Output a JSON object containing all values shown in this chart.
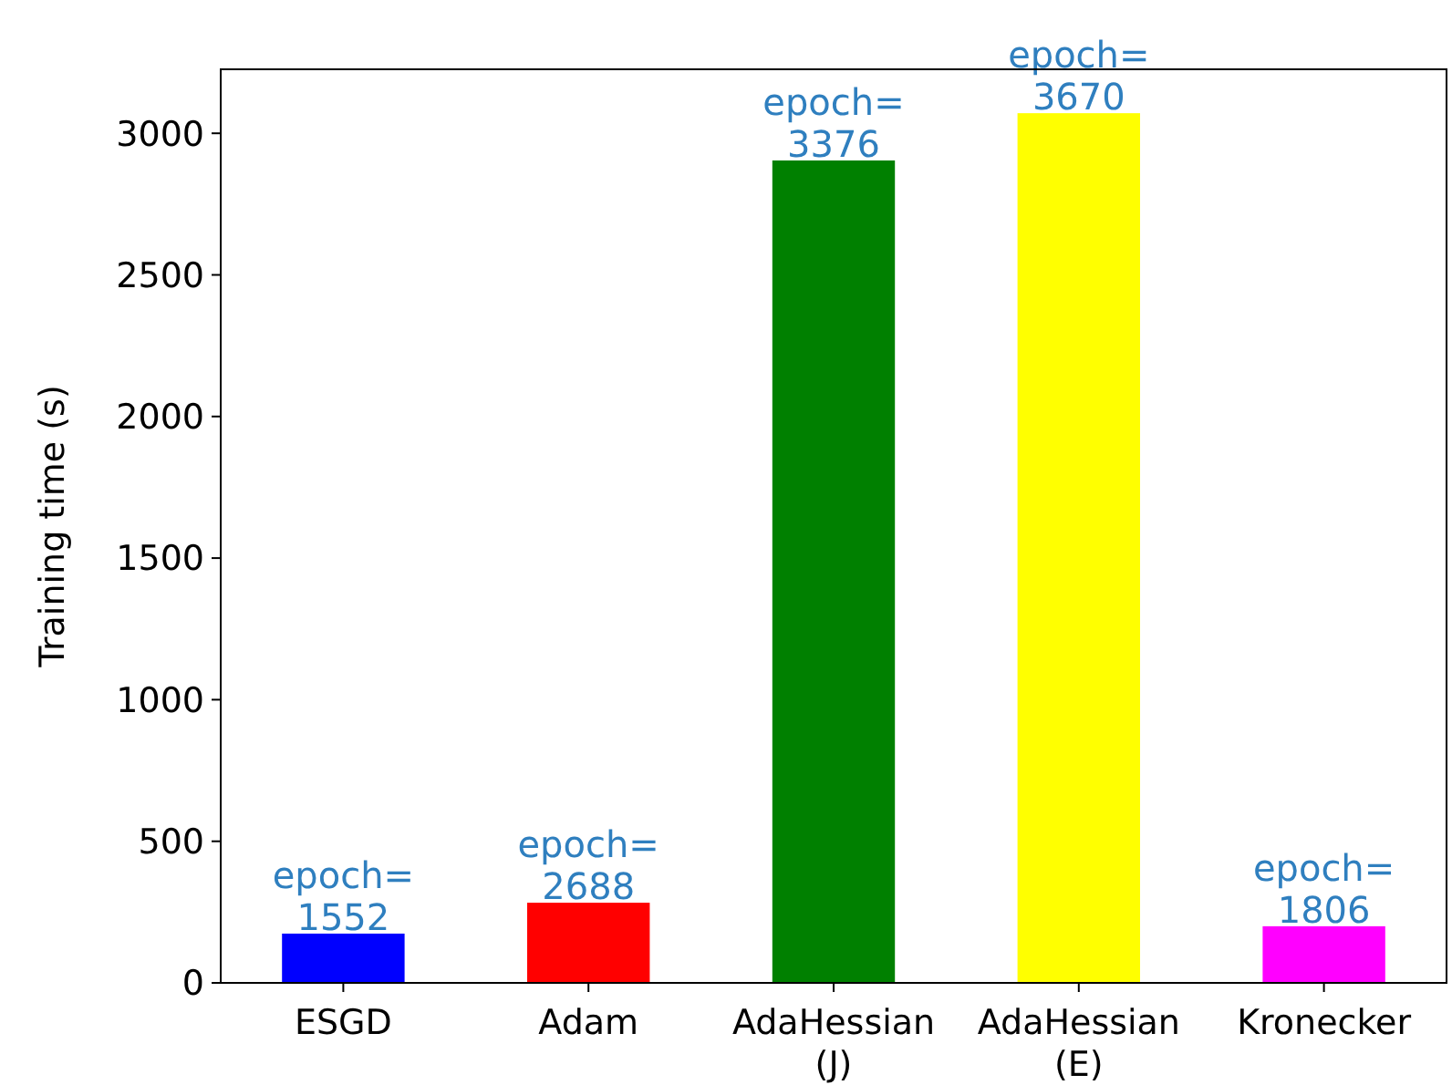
{
  "chart_data": {
    "type": "bar",
    "ylabel": "Training time (s)",
    "categories": [
      "ESGD",
      "Adam",
      "AdaHessian\n(J)",
      "AdaHessian\n(E)",
      "Kronecker"
    ],
    "values": [
      174,
      283,
      2904,
      3071,
      200
    ],
    "colors": [
      "#0000ff",
      "#ff0000",
      "#008000",
      "#ffff00",
      "#ff00ff"
    ],
    "ylim": [
      0,
      3226
    ],
    "yticks": [
      0,
      500,
      1000,
      1500,
      2000,
      2500,
      3000
    ],
    "grid": false,
    "annotations": [
      {
        "text": "epoch=\n1552",
        "x": "ESGD",
        "y": 174
      },
      {
        "text": "epoch=\n2688",
        "x": "Adam",
        "y": 283
      },
      {
        "text": "epoch=\n3376",
        "x": "AdaHessian\n(J)",
        "y": 2904
      },
      {
        "text": "epoch=\n3670",
        "x": "AdaHessian\n(E)",
        "y": 3071
      },
      {
        "text": "epoch=\n1806",
        "x": "Kronecker",
        "y": 200
      }
    ]
  }
}
